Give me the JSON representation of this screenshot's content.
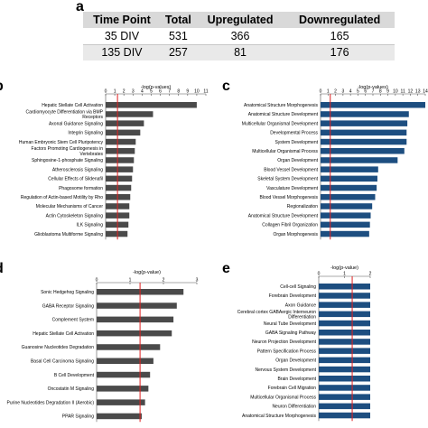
{
  "panels": {
    "a": "a",
    "b": "b",
    "c": "c",
    "d": "d",
    "e": "e"
  },
  "table": {
    "headers": [
      "Time Point",
      "Total",
      "Upregulated",
      "Downregulated"
    ],
    "rows": [
      [
        "35 DIV",
        "531",
        "366",
        "165"
      ],
      [
        "135 DIV",
        "257",
        "81",
        "176"
      ]
    ]
  },
  "colors": {
    "gray_bar": "#4a4a4a",
    "blue_bar": "#1d4e80",
    "threshold": "#e02020",
    "axis": "#555555"
  },
  "chart_data": [
    {
      "panel": "b",
      "type": "bar",
      "orientation": "horizontal",
      "xlabel": "-log(p-values)",
      "xlim": [
        0,
        11
      ],
      "xticks": [
        0,
        1,
        2,
        3,
        4,
        5,
        6,
        7,
        8,
        9,
        10,
        11
      ],
      "threshold": 1.3,
      "color": "gray",
      "categories": [
        "Hepatic Stellate Cell Activation",
        "Cardiomyocyte Differentiation via BMP Receptors",
        "Axonal Guidance Signaling",
        "Integrin Signaling",
        "Human Embryonic Stem Cell Pluripotency",
        "Factors Promoting Cardiogenesis in Vertebrates",
        "Sphingosine-1-phosphate Signaling",
        "Atherosclerosis Signaling",
        "Cellular Effects of Sildenafil",
        "Phagosome formation",
        "Regulation of Actin-based Motility by Rho",
        "Molecular Mechanisms of Cancer",
        "Actin Cytoskeleton Signaling",
        "ILK Signaling",
        "Glioblastoma Multiforme Signaling"
      ],
      "values": [
        10.0,
        5.2,
        4.2,
        3.8,
        3.3,
        3.2,
        3.1,
        3.0,
        2.9,
        2.8,
        2.7,
        2.6,
        2.6,
        2.5,
        2.4
      ]
    },
    {
      "panel": "c",
      "type": "bar",
      "orientation": "horizontal",
      "xlabel": "-log(p-values)",
      "xlim": [
        0,
        14
      ],
      "xticks": [
        0,
        1,
        2,
        3,
        4,
        5,
        6,
        7,
        8,
        9,
        10,
        11,
        12,
        13,
        14
      ],
      "threshold": 1.3,
      "color": "blue",
      "categories": [
        "Anatomical Structure Morphogenesis",
        "Anatomical Structure Development",
        "Multicellular Organismal Development",
        "Developmental Process",
        "System Development",
        "Multicellular Organismal Process",
        "Organ Development",
        "Blood Vessel Development",
        "Skeletal System Development",
        "Vasculature Development",
        "Blood Vessel Morphogenesis",
        "Regionalization",
        "Anatomical Structure Development",
        "Collagen Fibril Organization",
        "Organ Morphogenesis"
      ],
      "values": [
        14.0,
        11.8,
        11.6,
        11.5,
        11.5,
        11.2,
        10.3,
        7.7,
        7.6,
        7.5,
        7.3,
        6.9,
        6.7,
        6.6,
        6.5
      ]
    },
    {
      "panel": "d",
      "type": "bar",
      "orientation": "horizontal",
      "xlabel": "-log(p-value)",
      "xlim": [
        0,
        3
      ],
      "xticks": [
        0,
        1,
        2,
        3
      ],
      "threshold": 1.3,
      "color": "gray",
      "categories": [
        "Sonic Hedgehog Signaling",
        "GABA Receptor Signaling",
        "Complement System",
        "Hepatic Stellate Cell Activation",
        "Guanosine Nucleotides Degradation",
        "Basal Cell Carcinoma Signaling",
        "B Cell Development",
        "Oncostatin M Signaling",
        "Purine Nucleotides Degradation II (Aerobic)",
        "PPAR Signaling"
      ],
      "values": [
        2.6,
        2.4,
        2.3,
        2.25,
        1.9,
        1.7,
        1.6,
        1.55,
        1.45,
        1.35
      ]
    },
    {
      "panel": "e",
      "type": "bar",
      "orientation": "horizontal",
      "xlabel": "-log(p-value)",
      "xlim": [
        0,
        2
      ],
      "xticks": [
        0,
        1,
        2
      ],
      "threshold": 1.3,
      "color": "blue",
      "categories": [
        "Cell-cell Signaling",
        "Forebrain Development",
        "Axon Guidance",
        "Cerebral cortex GABAergic Interneuron Differentiation",
        "Neural Tube Development",
        "GABA Signaling Pathway",
        "Neuron Projection Development",
        "Pattern Specification Process",
        "Organ Development",
        "Nervous System Development",
        "Brain Development",
        "Forebrain Cell Migration",
        "Multicellular Organismal Process",
        "Neuron Differentiation",
        "Anatomical Structure Morphogenesis"
      ],
      "values": [
        2.0,
        2.0,
        2.0,
        2.0,
        2.0,
        2.0,
        2.0,
        2.0,
        2.0,
        2.0,
        2.0,
        2.0,
        2.0,
        2.0,
        2.0
      ]
    }
  ]
}
